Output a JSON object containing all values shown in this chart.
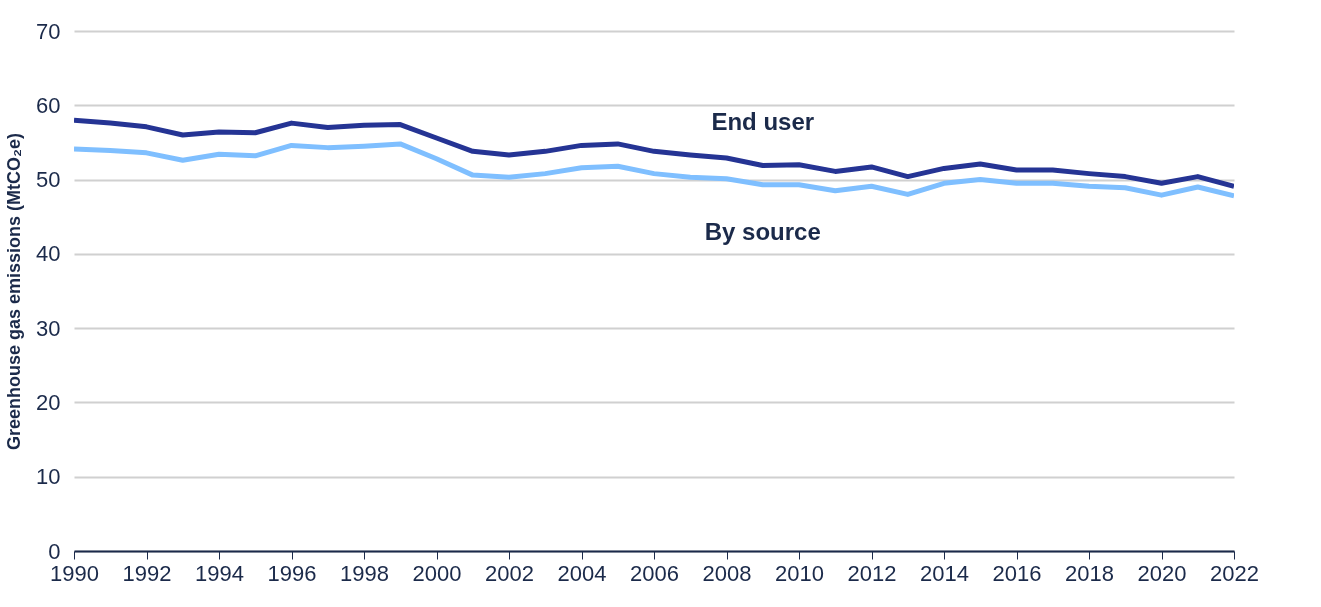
{
  "chart_data": {
    "type": "line",
    "ylabel": "Greenhouse gas emissions (MtCO₂e)",
    "x": [
      1990,
      1991,
      1992,
      1993,
      1994,
      1995,
      1996,
      1997,
      1998,
      1999,
      2000,
      2001,
      2002,
      2003,
      2004,
      2005,
      2006,
      2007,
      2008,
      2009,
      2010,
      2011,
      2012,
      2013,
      2014,
      2015,
      2016,
      2017,
      2018,
      2019,
      2020,
      2021,
      2022
    ],
    "series": [
      {
        "name": "End user",
        "color": "#253494",
        "values": [
          58.0,
          57.6,
          57.1,
          56.0,
          56.4,
          56.3,
          57.6,
          57.0,
          57.3,
          57.4,
          55.6,
          53.8,
          53.3,
          53.8,
          54.6,
          54.8,
          53.8,
          53.3,
          52.9,
          51.9,
          52.0,
          51.1,
          51.7,
          50.4,
          51.5,
          52.1,
          51.3,
          51.3,
          50.8,
          50.4,
          49.5,
          50.4,
          49.1
        ]
      },
      {
        "name": "By source",
        "color": "#7fbfff",
        "values": [
          54.1,
          53.9,
          53.6,
          52.6,
          53.4,
          53.2,
          54.6,
          54.3,
          54.5,
          54.8,
          52.8,
          50.6,
          50.3,
          50.8,
          51.6,
          51.8,
          50.8,
          50.3,
          50.1,
          49.3,
          49.3,
          48.5,
          49.1,
          48.0,
          49.5,
          50.0,
          49.5,
          49.5,
          49.1,
          48.9,
          47.9,
          49.0,
          47.8
        ]
      }
    ],
    "xlim": [
      1990,
      2022
    ],
    "xticks": [
      1990,
      1992,
      1994,
      1996,
      1998,
      2000,
      2002,
      2004,
      2006,
      2008,
      2010,
      2012,
      2014,
      2016,
      2018,
      2020,
      2022
    ],
    "ylim": [
      0,
      70
    ],
    "yticks": [
      0,
      10,
      20,
      30,
      40,
      50,
      60,
      70
    ],
    "grid": "y",
    "legend": false,
    "marker": "none",
    "line_style": "solid"
  }
}
